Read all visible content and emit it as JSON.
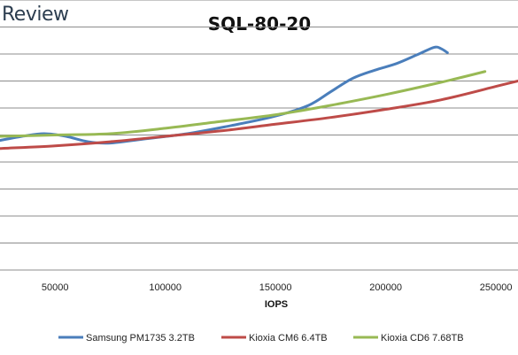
{
  "brand": "Review",
  "chart_data": {
    "type": "line",
    "title": "SQL-80-20",
    "xlabel": "IOPS",
    "ylabel": "",
    "xlim": [
      25000,
      260000
    ],
    "ylim": [
      0,
      10
    ],
    "grid": true,
    "legend_position": "bottom",
    "xticks": [
      {
        "value": 50000,
        "label": "50000"
      },
      {
        "value": 100000,
        "label": "100000"
      },
      {
        "value": 150000,
        "label": "150000"
      },
      {
        "value": 200000,
        "label": "200000"
      },
      {
        "value": 250000,
        "label": "250000"
      }
    ],
    "series": [
      {
        "name": "Samsung PM1735 3.2TB",
        "color": "#4a7ebb",
        "x": [
          25000,
          35000,
          45000,
          55000,
          65000,
          75000,
          90000,
          110000,
          130000,
          150000,
          165000,
          175000,
          185000,
          195000,
          205000,
          215000,
          222000,
          225000,
          228000
        ],
        "y": [
          4.8,
          4.95,
          5.05,
          4.95,
          4.75,
          4.7,
          4.85,
          5.05,
          5.35,
          5.7,
          6.1,
          6.6,
          7.1,
          7.4,
          7.65,
          8.0,
          8.25,
          8.2,
          8.05
        ]
      },
      {
        "name": "Kioxia CM6 6.4TB",
        "color": "#be4b48",
        "x": [
          25000,
          50000,
          75000,
          100000,
          125000,
          150000,
          175000,
          200000,
          225000,
          250000,
          260000
        ],
        "y": [
          4.5,
          4.6,
          4.75,
          4.95,
          5.15,
          5.4,
          5.65,
          5.95,
          6.3,
          6.8,
          7.0
        ]
      },
      {
        "name": "Kioxia CD6 7.68TB",
        "color": "#98b954",
        "x": [
          25000,
          50000,
          75000,
          100000,
          125000,
          150000,
          175000,
          200000,
          225000,
          245000
        ],
        "y": [
          4.95,
          5.0,
          5.05,
          5.25,
          5.5,
          5.75,
          6.1,
          6.5,
          6.95,
          7.35
        ]
      }
    ]
  }
}
